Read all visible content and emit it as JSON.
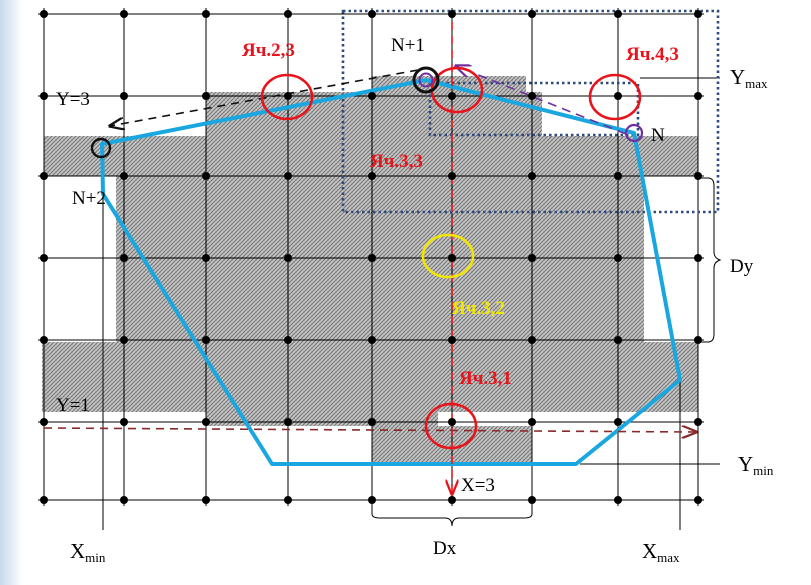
{
  "labels": {
    "cell_2_3": "Яч.2,3",
    "cell_4_3": "Яч.4,3",
    "cell_3_3": "Яч.3,3",
    "cell_3_2": "Яч.3,2",
    "cell_3_1": "Яч.3,1",
    "n_plus_1": "N+1",
    "n": "N",
    "n_plus_2": "N+2",
    "y_eq_3": "Y=3",
    "y_eq_1": "Y=1",
    "x_eq_3": "X=3",
    "y_max_main": "Y",
    "y_max_sub": "max",
    "y_min_main": "Y",
    "y_min_sub": "min",
    "x_min_main": "X",
    "x_min_sub": "min",
    "x_max_main": "X",
    "x_max_sub": "max",
    "dx": "Dx",
    "dy": "Dy"
  },
  "colors": {
    "polygon": "#1aa7e0",
    "cell_circle": "#e8141b",
    "yellow_circle": "#f2e600",
    "vertex_dark": "#111111",
    "vertex_n": "#7030a0",
    "red_dash": "#e8141b",
    "brown_dash": "#8b2a2a",
    "purple_dash": "#7030a0",
    "dotted_box": "#2f4b7c",
    "hatch": "#8a8a8a"
  }
}
